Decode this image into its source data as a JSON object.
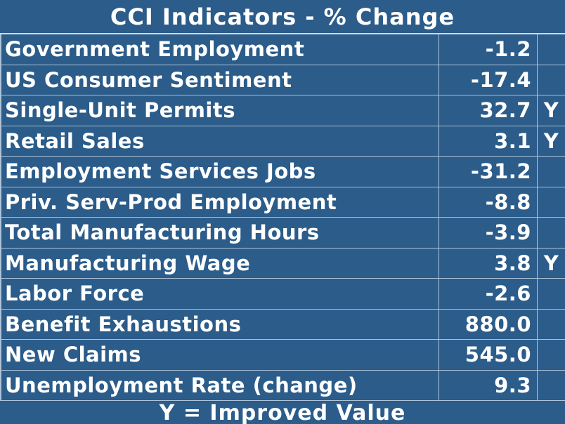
{
  "colors": {
    "background": "#2b5c8a",
    "grid_line": "#aec3d8",
    "text": "#ffffff"
  },
  "chart_data": {
    "type": "table",
    "title": "CCI Indicators - % Change",
    "legend": "Y = Improved Value",
    "rows": [
      {
        "indicator": "Government Employment",
        "pct_change": "-1.2",
        "improved": ""
      },
      {
        "indicator": "US Consumer Sentiment",
        "pct_change": "-17.4",
        "improved": ""
      },
      {
        "indicator": "Single-Unit Permits",
        "pct_change": "32.7",
        "improved": "Y"
      },
      {
        "indicator": "Retail Sales",
        "pct_change": "3.1",
        "improved": "Y"
      },
      {
        "indicator": "Employment Services Jobs",
        "pct_change": "-31.2",
        "improved": ""
      },
      {
        "indicator": "Priv. Serv-Prod Employment",
        "pct_change": "-8.8",
        "improved": ""
      },
      {
        "indicator": "Total Manufacturing Hours",
        "pct_change": "-3.9",
        "improved": ""
      },
      {
        "indicator": "Manufacturing Wage",
        "pct_change": "3.8",
        "improved": "Y"
      },
      {
        "indicator": "Labor Force",
        "pct_change": "-2.6",
        "improved": ""
      },
      {
        "indicator": "Benefit Exhaustions",
        "pct_change": "880.0",
        "improved": ""
      },
      {
        "indicator": "New Claims",
        "pct_change": "545.0",
        "improved": ""
      },
      {
        "indicator": "Unemployment Rate (change)",
        "pct_change": "9.3",
        "improved": ""
      }
    ]
  }
}
